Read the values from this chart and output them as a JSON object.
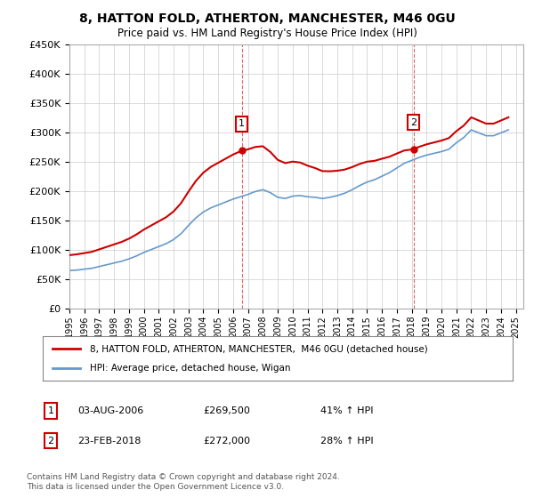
{
  "title1": "8, HATTON FOLD, ATHERTON, MANCHESTER, M46 0GU",
  "title2": "Price paid vs. HM Land Registry's House Price Index (HPI)",
  "ylim": [
    0,
    450000
  ],
  "xlim_start": 1995.0,
  "xlim_end": 2025.5,
  "legend_line1": "8, HATTON FOLD, ATHERTON, MANCHESTER,  M46 0GU (detached house)",
  "legend_line2": "HPI: Average price, detached house, Wigan",
  "annotation1_label": "1",
  "annotation1_date": "03-AUG-2006",
  "annotation1_price": "£269,500",
  "annotation1_hpi": "41% ↑ HPI",
  "annotation2_label": "2",
  "annotation2_date": "23-FEB-2018",
  "annotation2_price": "£272,000",
  "annotation2_hpi": "28% ↑ HPI",
  "footnote": "Contains HM Land Registry data © Crown copyright and database right 2024.\nThis data is licensed under the Open Government Licence v3.0.",
  "sale1_x": 2006.58,
  "sale1_y": 269500,
  "sale2_x": 2018.12,
  "sale2_y": 272000,
  "line_color_red": "#cc0000",
  "line_color_blue": "#6699cc",
  "background_color": "#ffffff",
  "grid_color": "#cccccc"
}
